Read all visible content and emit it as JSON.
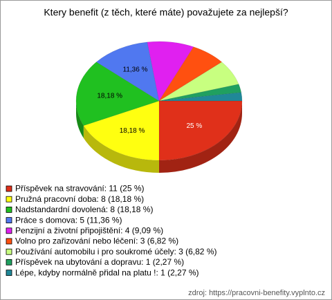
{
  "chart_data": {
    "type": "pie",
    "title": "Ktery benefit (z těch, které máte) považujete za nejlepší?",
    "categories": [
      "Příspěvek na stravování: 11 (25 %)",
      "Pružná pracovní doba: 8 (18,18 %)",
      "Nadstandardní dovolená: 8 (18,18 %)",
      "Práce s domova: 5 (11,36 %)",
      "Penzijní a životní připojištění: 4 (9,09 %)",
      "Volno pro zařizování nebo léčení: 3 (6,82 %)",
      "Používání automobilu i pro soukromé účely: 3 (6,82 %)",
      "Příspěvek na ubytování a dopravu: 1 (2,27 %)",
      "Lépe, kdyby normálně přidal na platu !: 1 (2,27 %)"
    ],
    "values": [
      25,
      18.18,
      18.18,
      11.36,
      9.09,
      6.82,
      6.82,
      2.27,
      2.27
    ],
    "value_labels": [
      "25 %",
      "18,18 %",
      "18,18 %",
      "11,36 %",
      null,
      null,
      null,
      null,
      null
    ],
    "colors": [
      "#e0301a",
      "#ffff10",
      "#20c020",
      "#5078f0",
      "#e020f0",
      "#ff5010",
      "#c8ff80",
      "#20a060",
      "#208898"
    ],
    "source": "zdroj: https://pracovni-benefity.vyplnto.cz"
  }
}
